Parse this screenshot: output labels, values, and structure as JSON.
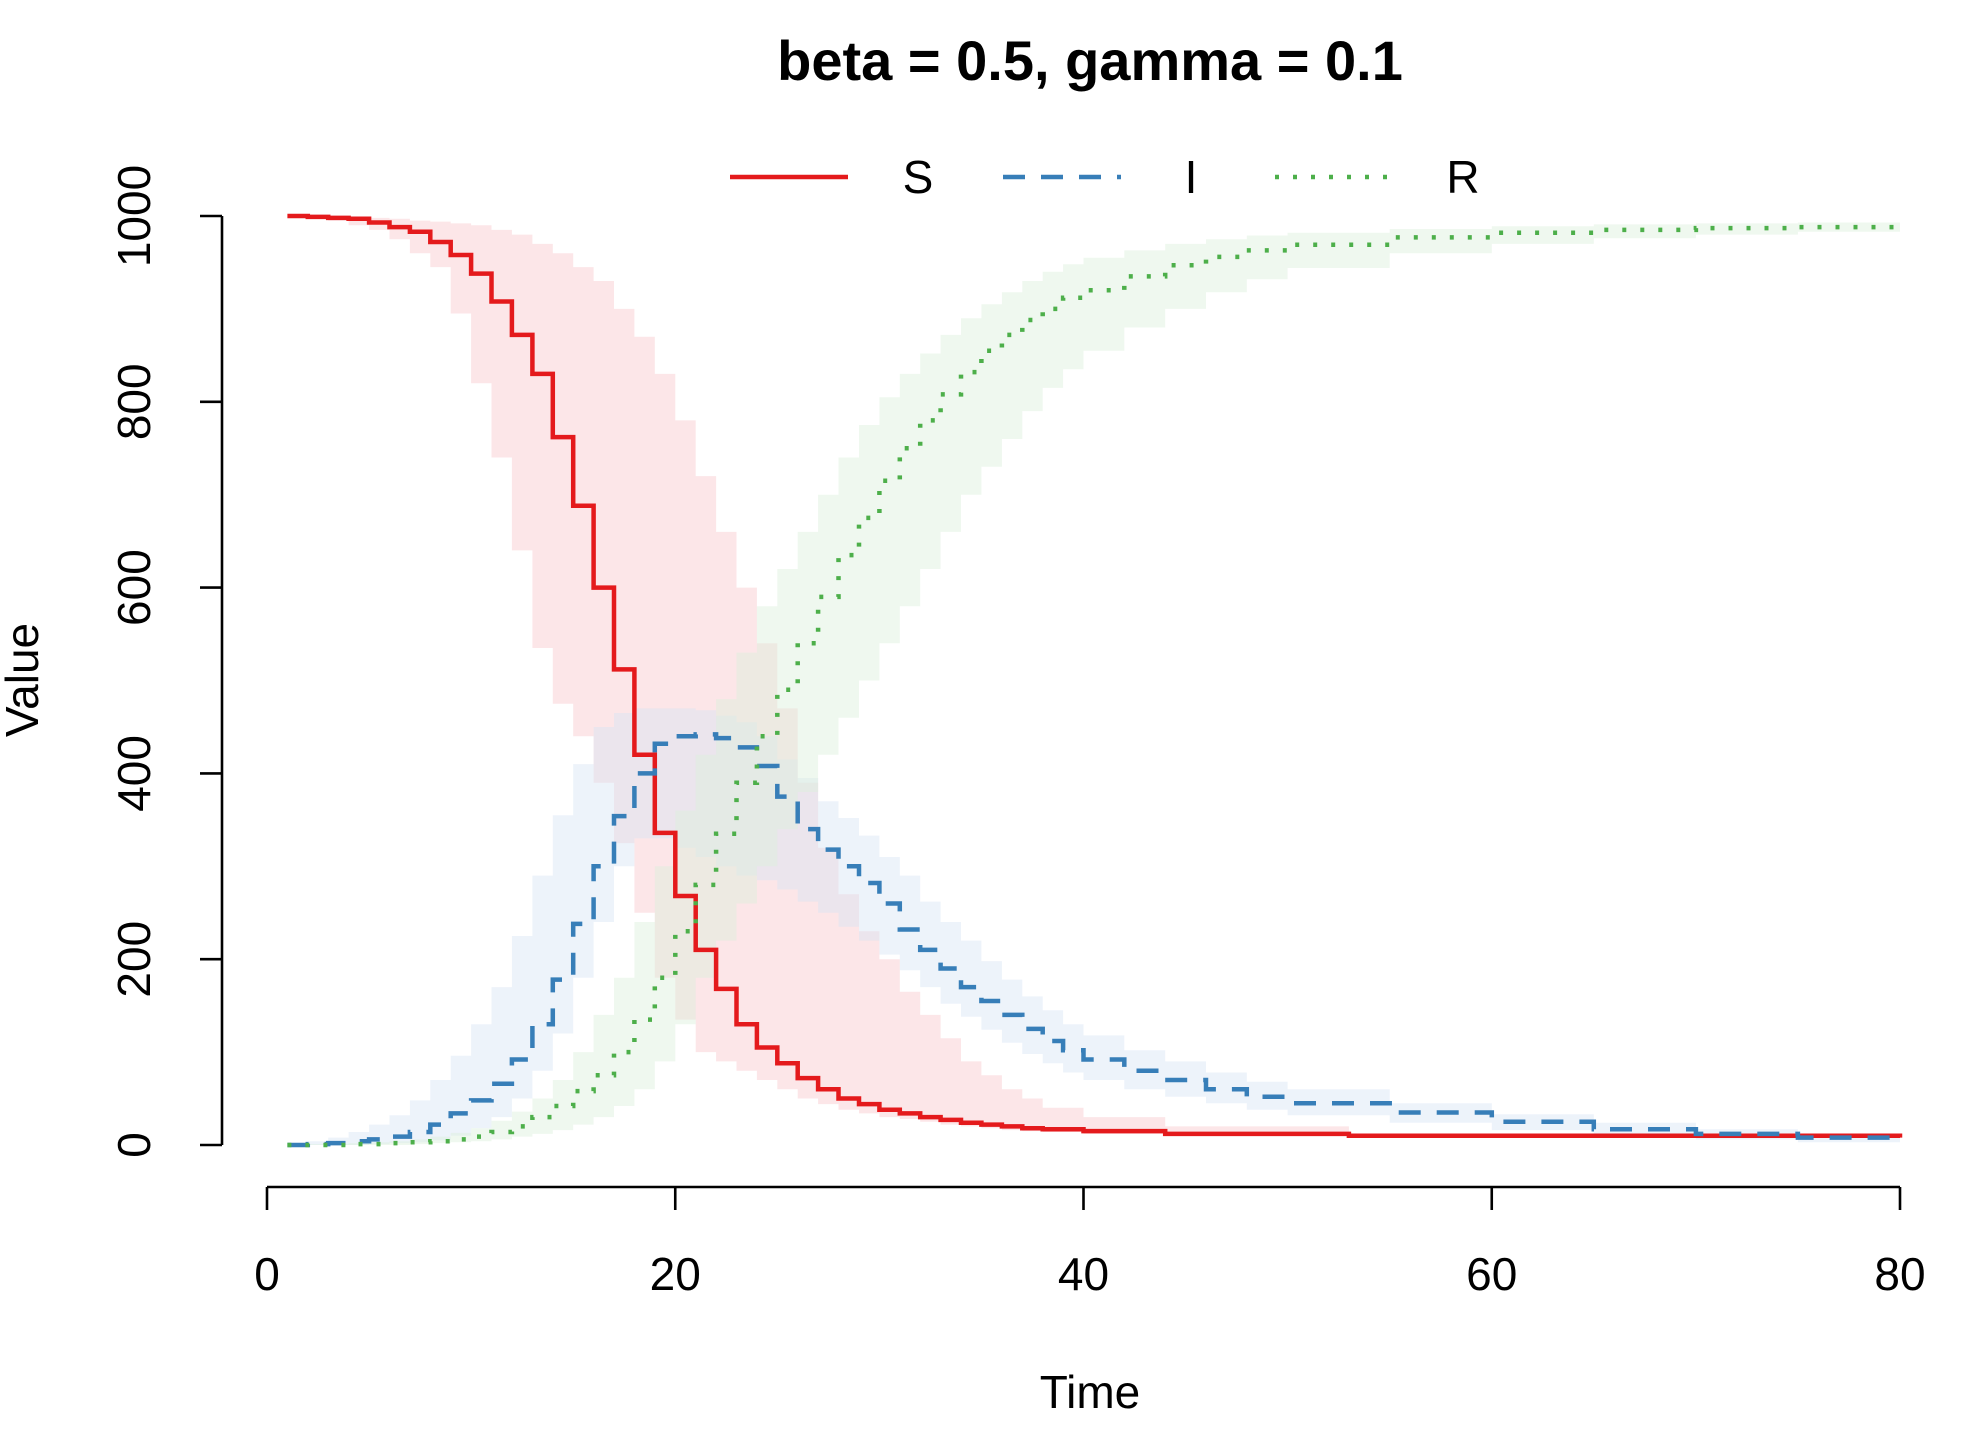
{
  "chart_data": {
    "type": "line",
    "title": "beta = 0.5, gamma = 0.1",
    "xlabel": "Time",
    "ylabel": "Value",
    "xlim": [
      0,
      80
    ],
    "ylim": [
      0,
      1000
    ],
    "xticks": [
      "0",
      "20",
      "40",
      "60",
      "80"
    ],
    "yticks": [
      "0",
      "200",
      "400",
      "600",
      "800",
      "1000"
    ],
    "grid": false,
    "legend_position": "top-center",
    "series": [
      {
        "name": "S",
        "color": "#e41a1c",
        "line_style": "solid",
        "band_color": "#f8c8cc",
        "x": [
          1,
          2,
          3,
          4,
          5,
          6,
          7,
          8,
          9,
          10,
          11,
          12,
          13,
          14,
          15,
          16,
          17,
          18,
          19,
          20,
          21,
          22,
          23,
          24,
          25,
          26,
          27,
          28,
          29,
          30,
          31,
          32,
          33,
          34,
          35,
          36,
          37,
          38,
          40,
          44,
          53,
          80
        ],
        "values": [
          1000,
          999,
          998,
          997,
          993,
          988,
          983,
          972,
          958,
          938,
          908,
          872,
          830,
          762,
          688,
          600,
          512,
          420,
          336,
          268,
          210,
          168,
          130,
          105,
          88,
          72,
          60,
          50,
          44,
          38,
          34,
          30,
          27,
          24,
          22,
          20,
          18,
          17,
          15,
          12,
          10,
          8
        ],
        "lower": [
          1000,
          999,
          995,
          990,
          985,
          975,
          960,
          945,
          895,
          820,
          740,
          640,
          535,
          475,
          440,
          390,
          325,
          250,
          180,
          135,
          100,
          90,
          80,
          70,
          60,
          50,
          44,
          38,
          34,
          30,
          28,
          25,
          22,
          20,
          18,
          16,
          15,
          14,
          12,
          10,
          8,
          6
        ],
        "upper": [
          1000,
          1000,
          1000,
          999,
          998,
          997,
          995,
          994,
          992,
          990,
          985,
          980,
          970,
          960,
          945,
          930,
          900,
          870,
          830,
          780,
          720,
          660,
          600,
          540,
          470,
          390,
          320,
          270,
          230,
          200,
          165,
          140,
          115,
          90,
          75,
          60,
          50,
          40,
          30,
          20,
          12,
          8
        ]
      },
      {
        "name": "I",
        "color": "#377eb8",
        "line_style": "dashed",
        "band_color": "#d6e4f3",
        "x": [
          1,
          2,
          3,
          4,
          5,
          6,
          7,
          8,
          9,
          10,
          11,
          12,
          13,
          14,
          15,
          16,
          17,
          18,
          19,
          20,
          21,
          22,
          23,
          24,
          25,
          26,
          27,
          28,
          29,
          30,
          31,
          32,
          33,
          34,
          35,
          36,
          37,
          38,
          39,
          40,
          42,
          44,
          46,
          48,
          50,
          55,
          60,
          65,
          70,
          75,
          80
        ],
        "values": [
          0,
          1,
          2,
          4,
          6,
          9,
          14,
          22,
          34,
          48,
          66,
          92,
          130,
          178,
          238,
          300,
          354,
          400,
          432,
          440,
          442,
          438,
          428,
          408,
          375,
          340,
          318,
          300,
          282,
          260,
          232,
          210,
          190,
          170,
          155,
          140,
          125,
          112,
          102,
          92,
          80,
          70,
          60,
          52,
          45,
          35,
          25,
          17,
          12,
          8,
          3
        ],
        "lower": [
          0,
          0,
          0,
          0,
          1,
          2,
          3,
          5,
          10,
          18,
          30,
          50,
          80,
          120,
          180,
          240,
          300,
          330,
          330,
          320,
          310,
          300,
          290,
          285,
          275,
          262,
          250,
          235,
          220,
          205,
          188,
          170,
          152,
          138,
          124,
          110,
          98,
          88,
          78,
          70,
          60,
          52,
          45,
          38,
          32,
          24,
          16,
          10,
          6,
          3,
          0
        ],
        "upper": [
          2,
          4,
          8,
          14,
          22,
          32,
          48,
          70,
          96,
          130,
          170,
          225,
          290,
          355,
          410,
          450,
          465,
          470,
          470,
          470,
          468,
          462,
          455,
          440,
          415,
          395,
          370,
          352,
          333,
          310,
          290,
          262,
          240,
          220,
          198,
          178,
          160,
          145,
          130,
          118,
          102,
          90,
          78,
          68,
          60,
          45,
          33,
          24,
          17,
          12,
          8
        ]
      },
      {
        "name": "R",
        "color": "#4daf4a",
        "line_style": "dotted",
        "band_color": "#dcefdc",
        "x": [
          1,
          2,
          3,
          4,
          5,
          6,
          7,
          8,
          9,
          10,
          11,
          12,
          13,
          14,
          15,
          16,
          17,
          18,
          19,
          20,
          21,
          22,
          23,
          24,
          25,
          26,
          27,
          28,
          29,
          30,
          31,
          32,
          33,
          34,
          35,
          36,
          37,
          38,
          39,
          40,
          42,
          44,
          46,
          48,
          50,
          55,
          60,
          65,
          70,
          75,
          80
        ],
        "values": [
          0,
          0,
          0,
          1,
          1,
          2,
          3,
          4,
          6,
          9,
          14,
          20,
          30,
          42,
          58,
          75,
          100,
          135,
          180,
          230,
          280,
          335,
          390,
          440,
          490,
          540,
          590,
          635,
          675,
          715,
          750,
          780,
          808,
          832,
          855,
          872,
          888,
          900,
          912,
          920,
          935,
          947,
          956,
          963,
          969,
          977,
          982,
          985,
          987,
          988,
          989
        ],
        "lower": [
          0,
          0,
          0,
          0,
          0,
          0,
          1,
          2,
          3,
          4,
          6,
          9,
          12,
          16,
          22,
          30,
          42,
          60,
          90,
          130,
          180,
          220,
          260,
          300,
          340,
          380,
          420,
          460,
          500,
          540,
          580,
          620,
          660,
          700,
          730,
          760,
          790,
          815,
          835,
          855,
          880,
          900,
          918,
          932,
          944,
          960,
          970,
          976,
          980,
          983,
          985
        ],
        "upper": [
          0,
          1,
          1,
          2,
          3,
          4,
          6,
          9,
          13,
          18,
          26,
          36,
          50,
          70,
          100,
          140,
          180,
          240,
          300,
          360,
          420,
          480,
          530,
          580,
          620,
          660,
          700,
          740,
          775,
          805,
          830,
          852,
          872,
          890,
          905,
          918,
          930,
          940,
          948,
          955,
          963,
          970,
          975,
          979,
          982,
          986,
          989,
          991,
          992,
          993,
          993
        ]
      }
    ]
  }
}
